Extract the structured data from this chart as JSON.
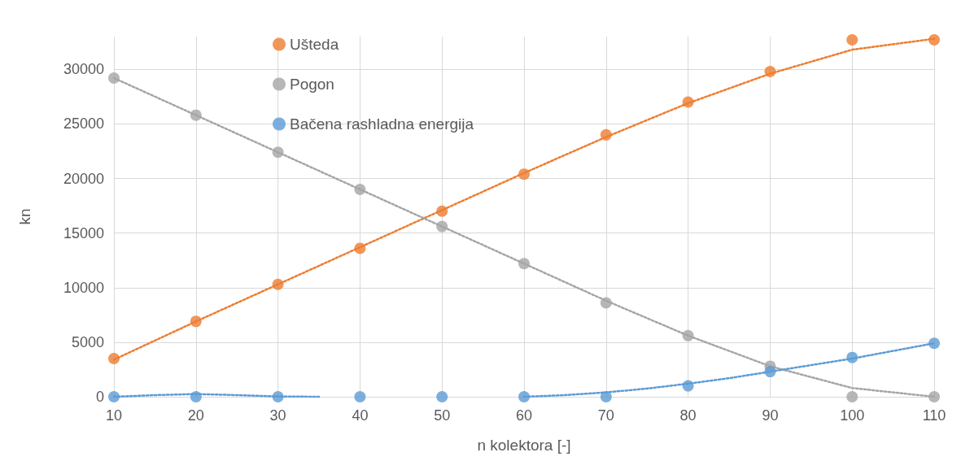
{
  "chart_data": {
    "type": "scatter",
    "xlabel": "n kolektora [-]",
    "ylabel": "kn",
    "xlim": [
      10,
      110
    ],
    "xticks": [
      10,
      20,
      30,
      40,
      50,
      60,
      70,
      80,
      90,
      100,
      110
    ],
    "ylim": [
      0,
      33000
    ],
    "yticks": [
      0,
      5000,
      10000,
      15000,
      20000,
      25000,
      30000
    ],
    "grid": true,
    "legend": "top left",
    "marker": "circle",
    "x": [
      10,
      20,
      30,
      40,
      50,
      60,
      70,
      80,
      90,
      100,
      110
    ],
    "series": [
      {
        "name": "Ušteda",
        "color": "#ed7d31",
        "values": [
          3500,
          6900,
          10300,
          13600,
          17000,
          20400,
          24000,
          27000,
          29800,
          32700,
          32700
        ]
      },
      {
        "name": "Pogon",
        "color": "#a5a5a5",
        "values": [
          29200,
          25800,
          22400,
          19000,
          15600,
          12200,
          8600,
          5600,
          2800,
          0,
          0
        ]
      },
      {
        "name": "Bačena rashladna energija",
        "color": "#5b9bd5",
        "values": [
          0,
          0,
          0,
          0,
          0,
          0,
          0,
          1000,
          2300,
          3600,
          4900
        ]
      },
      {
        "type": "line",
        "marker": "none",
        "line_style": "dotted",
        "color": "#ed7d31",
        "x": [
          10,
          20,
          30,
          40,
          50,
          60,
          70,
          80,
          90,
          100,
          110
        ],
        "values": [
          3400,
          6900,
          10300,
          13700,
          17100,
          20500,
          23800,
          26900,
          29600,
          31800,
          32800
        ]
      },
      {
        "type": "line",
        "marker": "none",
        "line_style": "dotted",
        "color": "#a5a5a5",
        "x": [
          10,
          20,
          30,
          40,
          50,
          60,
          70,
          80,
          90,
          100,
          110
        ],
        "values": [
          29200,
          25800,
          22400,
          19000,
          15600,
          12200,
          8800,
          5600,
          2800,
          800,
          0
        ]
      },
      {
        "type": "line",
        "marker": "none",
        "line_style": "dotted",
        "color": "#5b9bd5",
        "x": [
          10,
          15,
          20,
          25,
          30,
          35,
          47,
          60,
          65,
          70,
          75,
          80,
          85,
          90,
          95,
          100,
          105,
          110
        ],
        "values": [
          0,
          150,
          250,
          150,
          30,
          0,
          null,
          0,
          150,
          400,
          750,
          1200,
          1700,
          2300,
          2900,
          3500,
          4200,
          4900
        ]
      }
    ]
  }
}
